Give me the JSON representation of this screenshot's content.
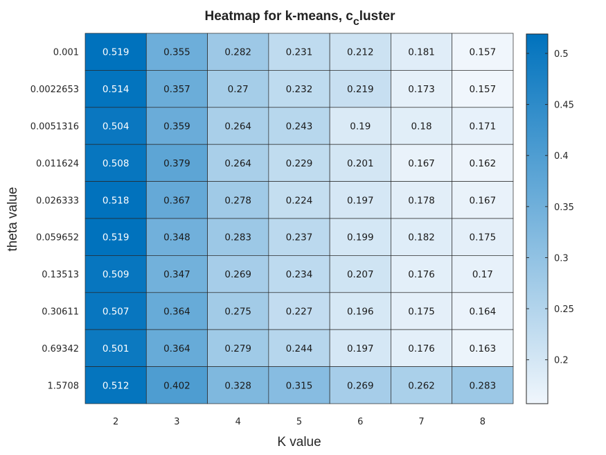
{
  "chart_data": {
    "type": "heatmap",
    "title_main": "Heatmap for k-means, c",
    "title_sub": "c",
    "title_end": "luster",
    "xlabel": "K value",
    "ylabel": "theta value",
    "x_categories": [
      "2",
      "3",
      "4",
      "5",
      "6",
      "7",
      "8"
    ],
    "y_categories": [
      "0.001",
      "0.0022653",
      "0.0051316",
      "0.011624",
      "0.026333",
      "0.059652",
      "0.13513",
      "0.30611",
      "0.69342",
      "1.5708"
    ],
    "values": [
      [
        0.519,
        0.355,
        0.282,
        0.231,
        0.212,
        0.181,
        0.157
      ],
      [
        0.514,
        0.357,
        0.27,
        0.232,
        0.219,
        0.173,
        0.157
      ],
      [
        0.504,
        0.359,
        0.264,
        0.243,
        0.19,
        0.18,
        0.171
      ],
      [
        0.508,
        0.379,
        0.264,
        0.229,
        0.201,
        0.167,
        0.162
      ],
      [
        0.518,
        0.367,
        0.278,
        0.224,
        0.197,
        0.178,
        0.167
      ],
      [
        0.519,
        0.348,
        0.283,
        0.237,
        0.199,
        0.182,
        0.175
      ],
      [
        0.509,
        0.347,
        0.269,
        0.234,
        0.207,
        0.176,
        0.17
      ],
      [
        0.507,
        0.364,
        0.275,
        0.227,
        0.196,
        0.175,
        0.164
      ],
      [
        0.501,
        0.364,
        0.279,
        0.244,
        0.197,
        0.176,
        0.163
      ],
      [
        0.512,
        0.402,
        0.328,
        0.315,
        0.269,
        0.262,
        0.283
      ]
    ],
    "colorbar": {
      "range": [
        0.157,
        0.519
      ],
      "ticks": [
        0.2,
        0.25,
        0.3,
        0.35,
        0.4,
        0.45,
        0.5
      ],
      "tick_labels": [
        "0.2",
        "0.25",
        "0.3",
        "0.35",
        "0.4",
        "0.45",
        "0.5"
      ],
      "color_low": "#f0f6fc",
      "color_high": "#0072bd"
    },
    "grid": true
  }
}
